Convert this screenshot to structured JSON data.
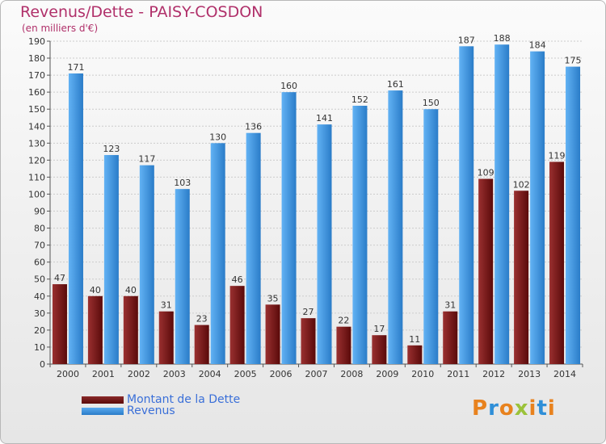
{
  "chart_data": {
    "type": "bar",
    "title": "Revenus/Dette - PAISY-COSDON",
    "subtitle": "(en milliers d'€)",
    "categories": [
      "2000",
      "2001",
      "2002",
      "2003",
      "2004",
      "2005",
      "2006",
      "2007",
      "2008",
      "2009",
      "2010",
      "2011",
      "2012",
      "2013",
      "2014"
    ],
    "series": [
      {
        "name": "Montant de la Dette",
        "color": "#7a1a1a",
        "values": [
          47,
          40,
          40,
          31,
          23,
          46,
          35,
          27,
          22,
          17,
          11,
          31,
          109,
          102,
          119
        ]
      },
      {
        "name": "Revenus",
        "color": "#3a93dc",
        "values": [
          171,
          123,
          117,
          103,
          130,
          136,
          160,
          141,
          152,
          161,
          150,
          187,
          188,
          184,
          175
        ]
      }
    ],
    "ylim": [
      0,
      190
    ],
    "ytick_step": 10,
    "grid": true,
    "legend": "bottom-left"
  },
  "brand": {
    "logo_text": "Proxiti"
  }
}
